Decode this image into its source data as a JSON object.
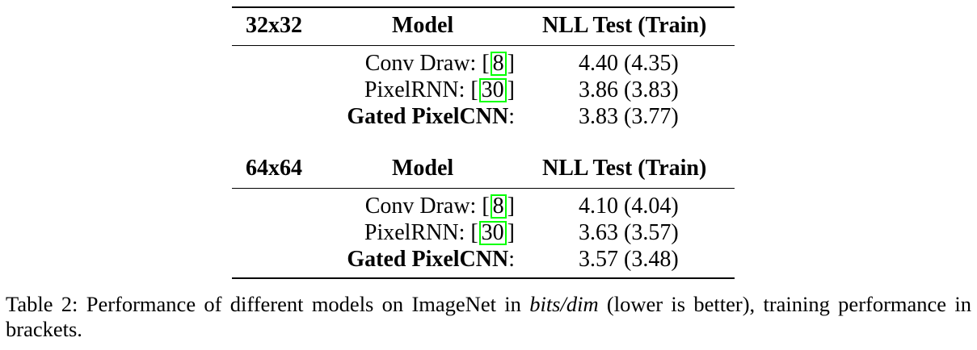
{
  "tables": [
    {
      "header": {
        "resolution": "32x32",
        "model": "Model",
        "nll": "NLL Test (Train)"
      },
      "rows": [
        {
          "model_prefix": "Conv Draw: [",
          "cite": "8",
          "model_suffix": "]",
          "nll": "4.40 (4.35)",
          "bold": false
        },
        {
          "model_prefix": "PixelRNN: [",
          "cite": "30",
          "model_suffix": "]",
          "nll": "3.86 (3.83)",
          "bold": false
        },
        {
          "model_name": "Gated PixelCNN",
          "colon": ":",
          "nll": "3.83 (3.77)",
          "bold": true
        }
      ]
    },
    {
      "header": {
        "resolution": "64x64",
        "model": "Model",
        "nll": "NLL Test (Train)"
      },
      "rows": [
        {
          "model_prefix": "Conv Draw: [",
          "cite": "8",
          "model_suffix": "]",
          "nll": "4.10 (4.04)",
          "bold": false
        },
        {
          "model_prefix": "PixelRNN: [",
          "cite": "30",
          "model_suffix": "]",
          "nll": "3.63 (3.57)",
          "bold": false
        },
        {
          "model_name": "Gated PixelCNN",
          "colon": ":",
          "nll": "3.57 (3.48)",
          "bold": true
        }
      ]
    }
  ],
  "caption": {
    "part1": "Table 2: Performance of different models on ImageNet in ",
    "italic": "bits/dim",
    "part2": " (lower is better), training performance in brackets."
  },
  "colors": {
    "cite_border": "#00ff00",
    "text": "#000000"
  }
}
